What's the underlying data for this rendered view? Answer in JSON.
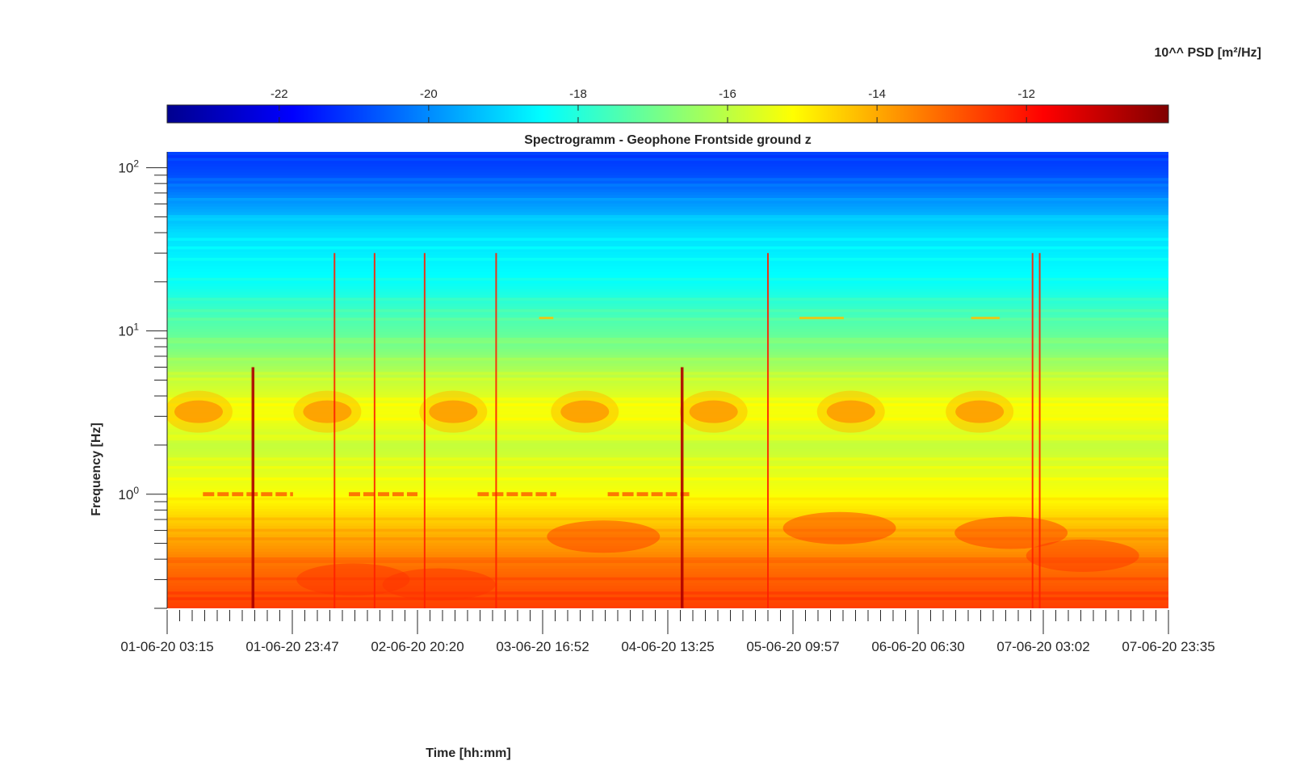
{
  "chart_data": {
    "type": "heatmap",
    "title": "Spectrogramm - Geophone Frontside ground z",
    "xlabel": "Time [hh:mm]",
    "ylabel": "Frequency [Hz]",
    "yscale": "log",
    "ylim": [
      0.2,
      125
    ],
    "x_tick_labels": [
      "01-06-20 03:15",
      "01-06-20 23:47",
      "02-06-20 20:20",
      "03-06-20 16:52",
      "04-06-20 13:25",
      "05-06-20 09:57",
      "06-06-20 06:30",
      "07-06-20 03:02",
      "07-06-20 23:35"
    ],
    "y_ticks": [
      {
        "base": "10",
        "exp": "0",
        "value": 1
      },
      {
        "base": "10",
        "exp": "1",
        "value": 10
      },
      {
        "base": "10",
        "exp": "2",
        "value": 100
      }
    ],
    "colorbar": {
      "label": "10^^ PSD [m²/Hz]",
      "range": [
        -23.5,
        -10.1
      ],
      "ticks": [
        -22,
        -20,
        -18,
        -16,
        -14,
        -12
      ],
      "tick_labels": [
        "-22",
        "-20",
        "-18",
        "-16",
        "-14",
        "-12"
      ],
      "colormap": "jet",
      "location": "top"
    },
    "features": {
      "daily_bursts_center_hz": 3.2,
      "daily_burst_day_fraction": [
        0.22,
        1.12,
        2.0,
        2.92,
        3.82,
        4.78,
        5.68
      ],
      "hum_line_hz": 1.0,
      "hum_line_day_fraction": [
        [
          0.25,
          0.88
        ],
        [
          1.27,
          1.75
        ],
        [
          2.17,
          2.72
        ],
        [
          3.08,
          3.65
        ]
      ],
      "strong_transients_day_fraction": [
        0.6,
        1.17,
        1.45,
        1.8,
        2.3,
        3.6,
        4.2,
        6.05,
        6.1
      ]
    }
  }
}
